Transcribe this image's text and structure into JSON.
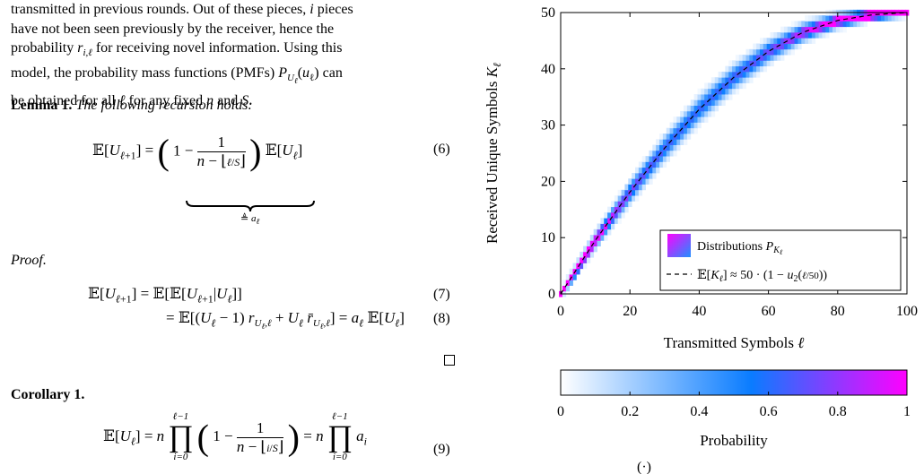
{
  "text": {
    "para_lines": [
      "transmitted in previous rounds. Out of these pieces, i pieces",
      "have not been seen previously by the receiver, hence the",
      "probability r_{i,ℓ} for receiving novel information. Using this",
      "model, the probability mass functions (PMFs) P_{U_ℓ}(u_ℓ) can",
      "be obtained for all ℓ for any fixed n and S."
    ],
    "lemma_label": "Lemma 1.",
    "lemma_text": "The following recursion holds:",
    "eq6_lhs": "𝔼[U",
    "eq6_number": "(6)",
    "eq6_underbrace": "≜ a",
    "proof_label": "Proof.",
    "eq7_text": "𝔼[U_{ℓ+1}] = 𝔼[𝔼[U_{ℓ+1}|U_ℓ]]",
    "eq7_number": "(7)",
    "eq8_text": "= 𝔼[(U_ℓ − 1) r_{U_ℓ,ℓ} + U_ℓ r̄_{U_ℓ,ℓ}] = a_ℓ 𝔼[U_ℓ]",
    "eq8_number": "(8)",
    "corollary_label": "Corollary 1.",
    "eq9_number": "(9)",
    "bottom_fragment": "(·)"
  },
  "chart_data": {
    "type": "heatmap",
    "xlabel": "Transmitted Symbols ℓ",
    "ylabel": "Received Unique Symbols K_ℓ",
    "xlim": [
      0,
      100
    ],
    "ylim": [
      0,
      50
    ],
    "xticks": [
      0,
      20,
      40,
      60,
      80,
      100
    ],
    "yticks": [
      0,
      10,
      20,
      30,
      40,
      50
    ],
    "grid": false,
    "legend_placement": "bottom-right",
    "legend": [
      {
        "label": "Distributions P_{K_ℓ}",
        "style": "heat patch"
      },
      {
        "label": "𝔼[K_ℓ] ≈ 50 · (1 − u₂(ℓ/50))",
        "style": "dashed black line"
      }
    ],
    "expected_curve": {
      "x": [
        0,
        10,
        20,
        30,
        40,
        50,
        60,
        70,
        80,
        90,
        100
      ],
      "y": [
        0,
        9.5,
        18.1,
        25.9,
        32.8,
        38.5,
        43.1,
        46.5,
        48.6,
        49.6,
        50
      ]
    },
    "colorbar": {
      "label": "Probability",
      "ticks": [
        0,
        0.2,
        0.4,
        0.6,
        0.8,
        1
      ],
      "colors": [
        "#ffffff",
        "#0a7cff",
        "#ff00ff"
      ]
    }
  }
}
